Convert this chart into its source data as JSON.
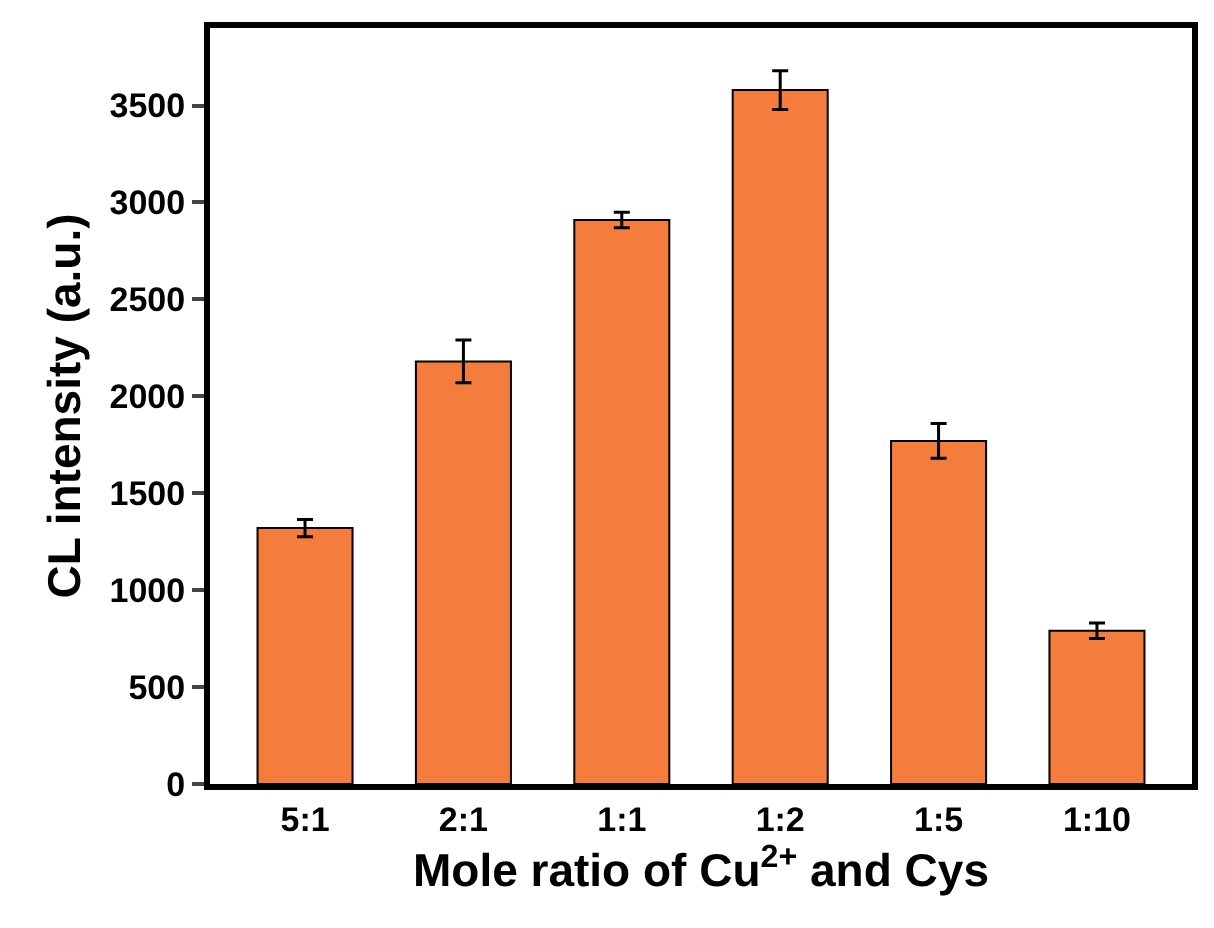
{
  "chart_data": {
    "type": "bar",
    "xlabel": "Mole ratio of Cu$^{2+}$ and Cys",
    "ylabel": "CL intensity (a.u.)",
    "categories": [
      "5:1",
      "2:1",
      "1:1",
      "1:2",
      "1:5",
      "1:10"
    ],
    "values": [
      1320,
      2180,
      2910,
      3580,
      1770,
      790
    ],
    "errors": [
      45,
      110,
      40,
      100,
      90,
      40
    ],
    "color": "#f47c3c",
    "ylim": [
      0,
      3900
    ],
    "yticks": [
      0,
      500,
      1000,
      1500,
      2000,
      2500,
      3000,
      3500
    ]
  }
}
